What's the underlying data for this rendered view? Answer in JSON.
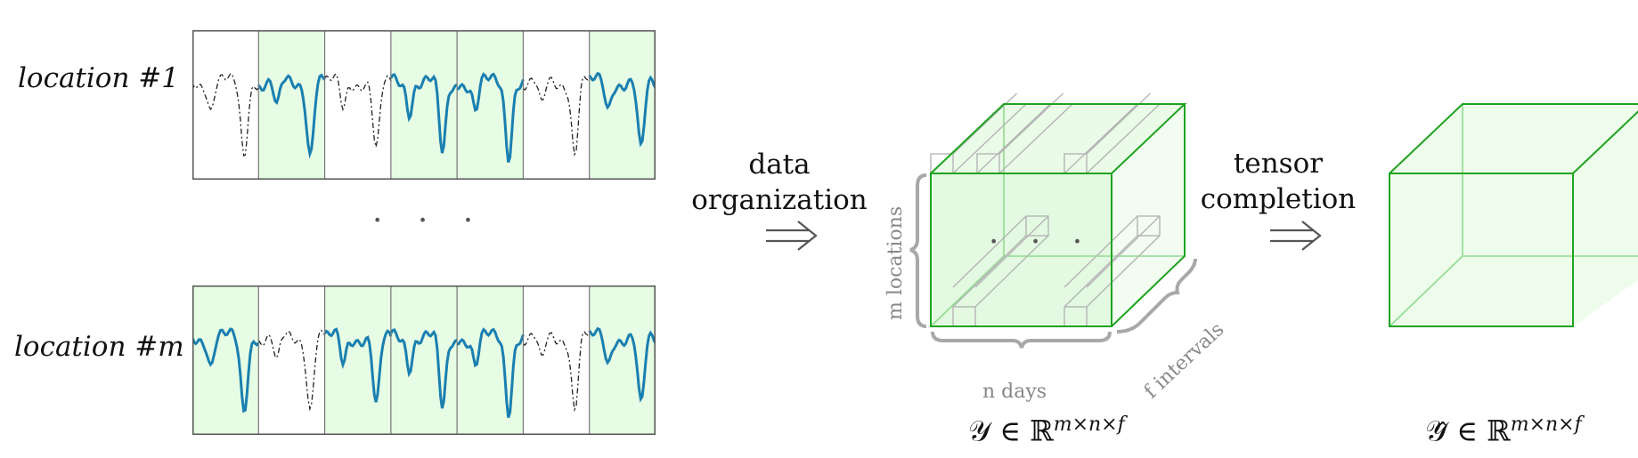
{
  "panels": {
    "location_1": {
      "label": "location #1",
      "pattern": [
        "missing",
        "observed",
        "missing",
        "observed",
        "observed",
        "missing",
        "observed"
      ]
    },
    "location_m": {
      "label": "location #m",
      "pattern": [
        "observed",
        "missing",
        "observed",
        "observed",
        "observed",
        "missing",
        "observed"
      ]
    },
    "ellipsis": "· · ·"
  },
  "flow": {
    "data_org_line1": "data",
    "data_org_line2": "organization",
    "tensor_line1": "tensor",
    "tensor_line2": "completion",
    "arrow": "⇒"
  },
  "tensor_y": {
    "m_label": "m locations",
    "n_label": "n days",
    "f_label": "f intervals",
    "ellipsis": "· · ·",
    "symbol": "𝒴 ∈ ℝ",
    "exponent": "m×n×f"
  },
  "tensor_yhat": {
    "symbol": "𝒴̂ ∈ ℝ",
    "exponent": "m×n×f"
  },
  "colors": {
    "observed_fill": "#e6fce4",
    "observed_line": "#1a7fb0",
    "missing_line": "#222222",
    "cube_edge": "#1fa31f",
    "cube_fill": "#eafbe8",
    "gray": "#a8a8a8"
  }
}
